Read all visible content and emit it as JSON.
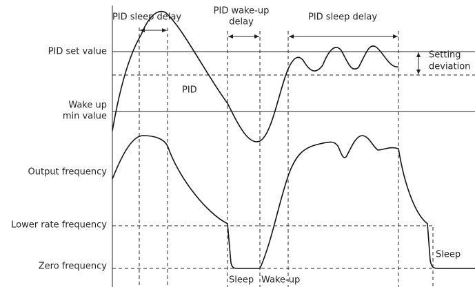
{
  "delays": {
    "left_sleep": "PID sleep delay",
    "wake_up": [
      "PID wake-up",
      "delay"
    ],
    "right_sleep": "PID sleep delay"
  },
  "levels": {
    "set_value": "PID set value",
    "setting_deviation": [
      "Setting",
      "deviation"
    ],
    "wake_up_min": [
      "Wake up",
      "min value"
    ],
    "output_frequency": "Output frequency",
    "lower_rate_frequency": "Lower rate frequency",
    "zero_frequency": "Zero frequency"
  },
  "curve_label": "PID",
  "states": {
    "sleep": "Sleep",
    "wake_up": "Wake-up",
    "sleep_right": "Sleep"
  }
}
